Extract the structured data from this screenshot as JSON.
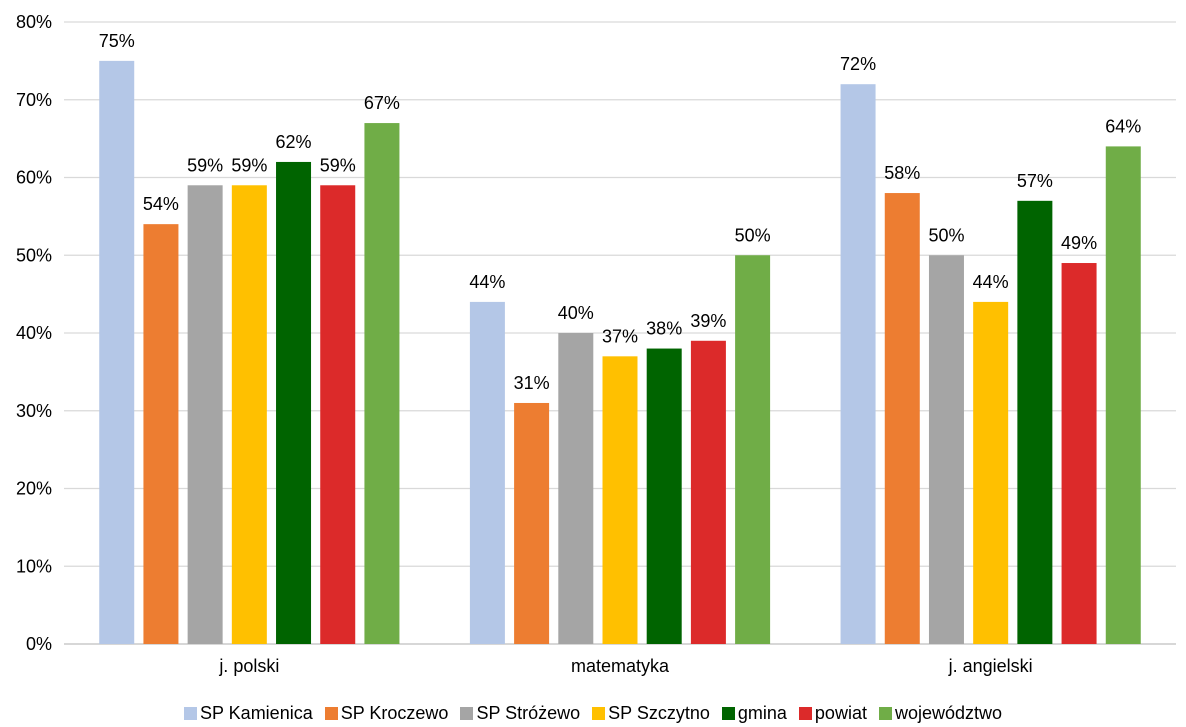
{
  "chart_data": {
    "type": "bar",
    "categories": [
      "j. polski",
      "matematyka",
      "j. angielski"
    ],
    "series": [
      {
        "name": "SP Kamienica",
        "color": "#B4C7E7",
        "values": [
          75,
          44,
          72
        ]
      },
      {
        "name": "SP Kroczewo",
        "color": "#ED7D31",
        "values": [
          54,
          31,
          58
        ]
      },
      {
        "name": "SP Stróżewo",
        "color": "#A5A5A5",
        "values": [
          59,
          40,
          50
        ]
      },
      {
        "name": "SP Szczytno",
        "color": "#FFC000",
        "values": [
          59,
          37,
          44
        ]
      },
      {
        "name": "gmina",
        "color": "#006400",
        "values": [
          62,
          38,
          57
        ]
      },
      {
        "name": "powiat",
        "color": "#DC2A2A",
        "values": [
          59,
          39,
          49
        ]
      },
      {
        "name": "województwo",
        "color": "#70AD47",
        "values": [
          67,
          50,
          64
        ]
      }
    ],
    "ylim": [
      0,
      80
    ],
    "yticks": [
      "0%",
      "10%",
      "20%",
      "30%",
      "40%",
      "50%",
      "60%",
      "70%",
      "80%"
    ],
    "value_suffix": "%",
    "grid": true,
    "legend_position": "bottom"
  }
}
